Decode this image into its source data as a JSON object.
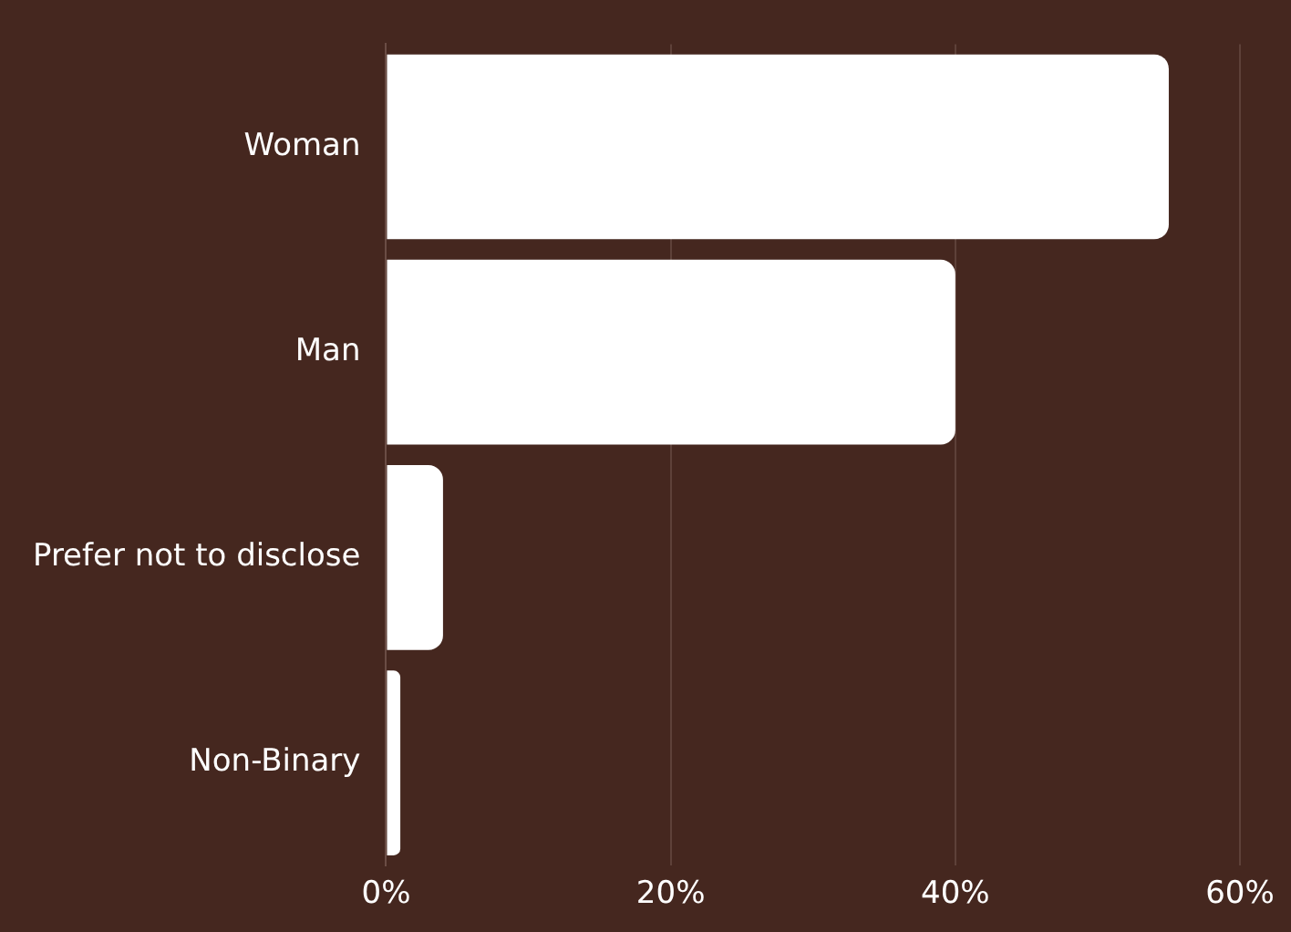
{
  "chart_data": {
    "type": "bar",
    "orientation": "horizontal",
    "categories": [
      "Woman",
      "Man",
      "Prefer not to disclose",
      "Non-Binary"
    ],
    "values": [
      55,
      40,
      4,
      1
    ],
    "color": "#ffffff",
    "xlim": [
      0,
      60
    ],
    "xticks": [
      {
        "value": 0,
        "label": "0%"
      },
      {
        "value": 20,
        "label": "20%"
      },
      {
        "value": 40,
        "label": "40%"
      },
      {
        "value": 60,
        "label": "60%"
      }
    ],
    "grid": "x"
  }
}
